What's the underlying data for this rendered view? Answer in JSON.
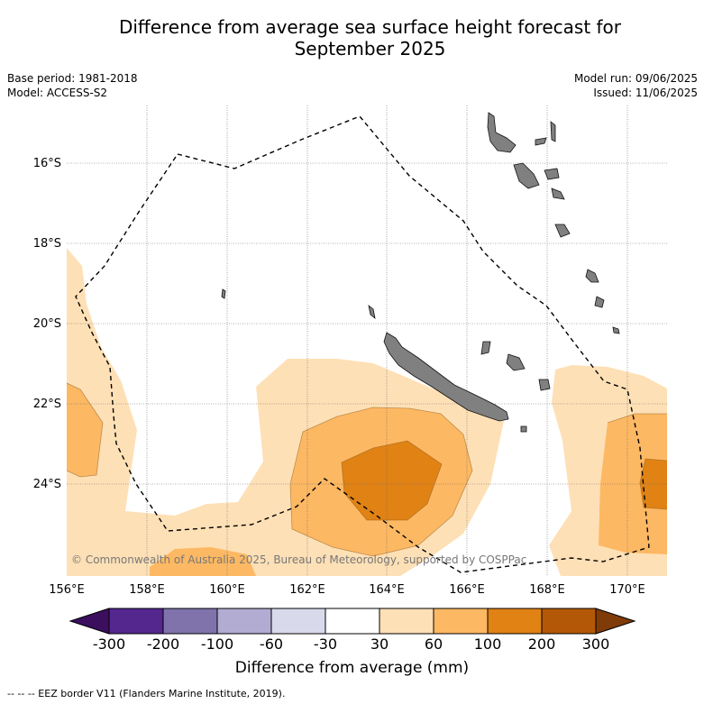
{
  "title_line1": "Difference from average sea surface height forecast for",
  "title_line2": "September 2025",
  "meta": {
    "base_period": "Base period: 1981-2018",
    "model": "Model: ACCESS-S2",
    "model_run": "Model run: 09/06/2025",
    "issued": "Issued: 11/06/2025"
  },
  "map": {
    "lat_labels": [
      "16°S",
      "18°S",
      "20°S",
      "22°S",
      "24°S"
    ],
    "lon_labels": [
      "156°E",
      "158°E",
      "160°E",
      "162°E",
      "164°E",
      "166°E",
      "168°E",
      "170°E"
    ],
    "copyright": "© Commonwealth of Australia 2025, Bureau of Meteorology, supported by COSPPac",
    "land_color": "#808080",
    "eez_style": "dashed-black"
  },
  "colorbar": {
    "ticks": [
      "-300",
      "-200",
      "-100",
      "-60",
      "-30",
      "30",
      "60",
      "100",
      "200",
      "300"
    ],
    "colors": [
      "#3b0f5e",
      "#54278f",
      "#8073ac",
      "#b2abd2",
      "#d8daeb",
      "#ffffff",
      "#fee0b6",
      "#fdb863",
      "#e08214",
      "#b35806",
      "#7f3b08"
    ],
    "label": "Difference from average (mm)"
  },
  "footnote": "--  --  -- EEZ border V11 (Flanders Marine Institute, 2019)."
}
